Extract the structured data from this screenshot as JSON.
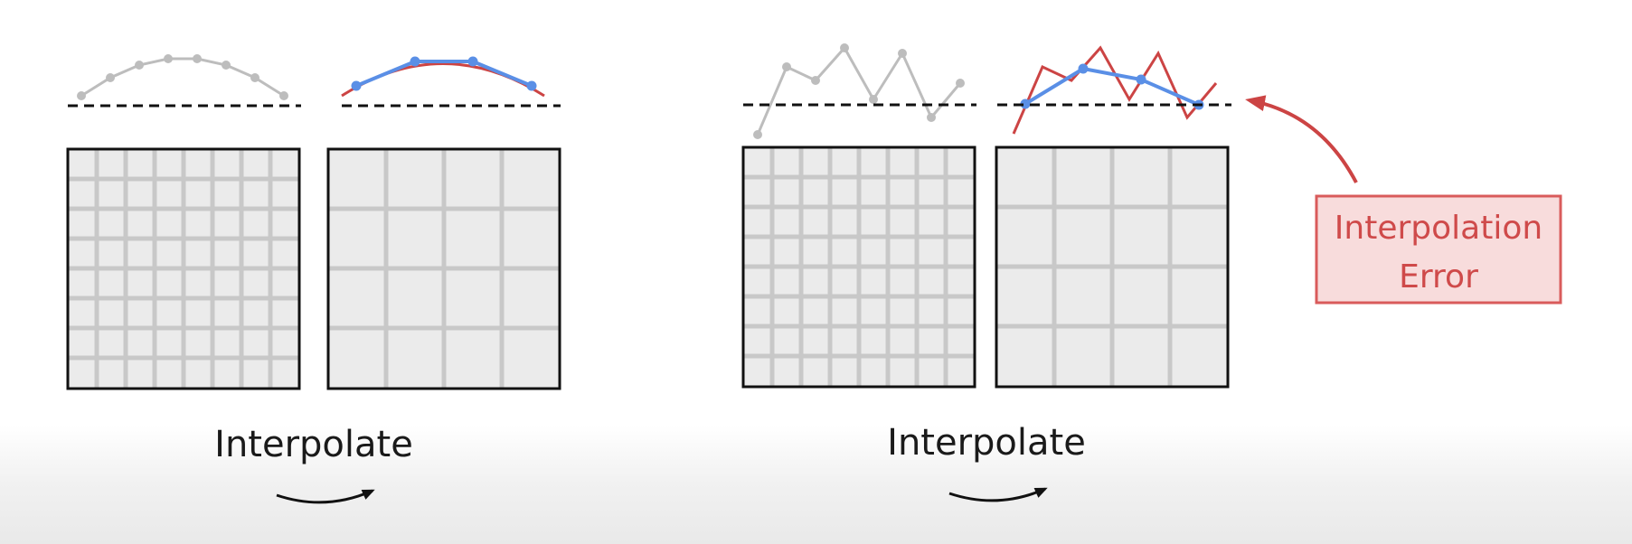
{
  "left_panel": {
    "caption": "Interpolate"
  },
  "right_panel": {
    "caption": "Interpolate"
  },
  "callout": {
    "line1": "Interpolation",
    "line2": "Error"
  },
  "colors": {
    "grid_fine_stroke": "#c8c8c8",
    "grid_fill": "#ebebeb",
    "frame": "#111111",
    "signal_gray": "#b9b9b9",
    "signal_blue": "#5a8fe6",
    "signal_red": "#cc4444",
    "callout_border": "#d95b5b",
    "callout_fill": "#f8dcdc",
    "callout_text": "#cf4a4a",
    "axis_dash": "#111111"
  }
}
